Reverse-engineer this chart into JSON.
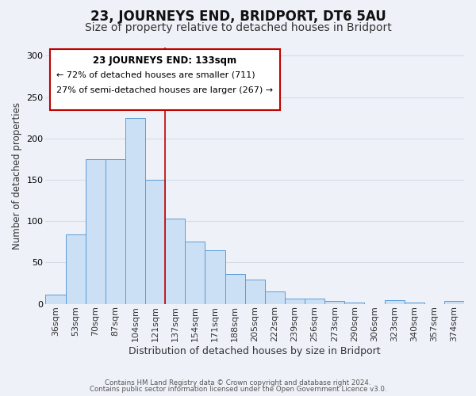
{
  "title": "23, JOURNEYS END, BRIDPORT, DT6 5AU",
  "subtitle": "Size of property relative to detached houses in Bridport",
  "xlabel": "Distribution of detached houses by size in Bridport",
  "ylabel": "Number of detached properties",
  "bar_labels": [
    "36sqm",
    "53sqm",
    "70sqm",
    "87sqm",
    "104sqm",
    "121sqm",
    "137sqm",
    "154sqm",
    "171sqm",
    "188sqm",
    "205sqm",
    "222sqm",
    "239sqm",
    "256sqm",
    "273sqm",
    "290sqm",
    "306sqm",
    "323sqm",
    "340sqm",
    "357sqm",
    "374sqm"
  ],
  "bar_values": [
    11,
    84,
    175,
    175,
    225,
    150,
    103,
    75,
    65,
    36,
    29,
    15,
    6,
    6,
    3,
    1,
    0,
    4,
    1,
    0,
    3
  ],
  "bar_color": "#cce0f5",
  "bar_edge_color": "#5b9bd5",
  "grid_color": "#d4dce8",
  "background_color": "#eef2f8",
  "vline_color": "#c00000",
  "vline_x": 5.5,
  "annotation_title": "23 JOURNEYS END: 133sqm",
  "annotation_line1": "← 72% of detached houses are smaller (711)",
  "annotation_line2": "27% of semi-detached houses are larger (267) →",
  "ylim": [
    0,
    310
  ],
  "yticks": [
    0,
    50,
    100,
    150,
    200,
    250,
    300
  ],
  "footer_line1": "Contains HM Land Registry data © Crown copyright and database right 2024.",
  "footer_line2": "Contains public sector information licensed under the Open Government Licence v3.0.",
  "title_fontsize": 12,
  "subtitle_fontsize": 10,
  "xlabel_fontsize": 9,
  "ylabel_fontsize": 8.5,
  "tick_fontsize": 8,
  "ann_fontsize_title": 8.5,
  "ann_fontsize_body": 8
}
